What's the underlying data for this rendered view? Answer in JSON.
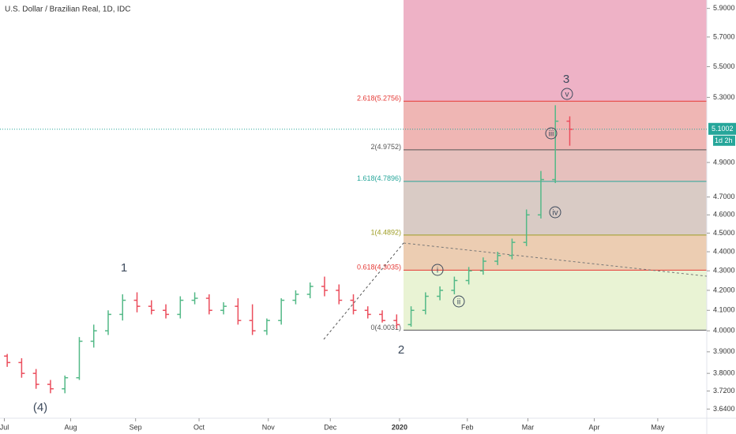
{
  "chart_data": {
    "type": "candlestick",
    "title": "U.S. Dollar / Brazilian Real, 1D, IDC",
    "log_scale": true,
    "ylim": [
      3.6,
      5.96
    ],
    "xlim": [
      -0.5,
      48.5
    ],
    "yticks": [
      {
        "value": 3.64,
        "label": "3.6400"
      },
      {
        "value": 3.72,
        "label": "3.7200"
      },
      {
        "value": 3.8,
        "label": "3.8000"
      },
      {
        "value": 3.9,
        "label": "3.9000"
      },
      {
        "value": 4.0,
        "label": "4.0000"
      },
      {
        "value": 4.1,
        "label": "4.1000"
      },
      {
        "value": 4.2,
        "label": "4.2000"
      },
      {
        "value": 4.3,
        "label": "4.3000"
      },
      {
        "value": 4.4,
        "label": "4.4000"
      },
      {
        "value": 4.5,
        "label": "4.5000"
      },
      {
        "value": 4.6,
        "label": "4.6000"
      },
      {
        "value": 4.7,
        "label": "4.7000"
      },
      {
        "value": 4.9,
        "label": "4.9000"
      },
      {
        "value": 5.3,
        "label": "5.3000"
      },
      {
        "value": 5.5,
        "label": "5.5000"
      },
      {
        "value": 5.7,
        "label": "5.7000"
      },
      {
        "value": 5.9,
        "label": "5.9000"
      }
    ],
    "xticks": [
      {
        "value": -0.2,
        "label": "Jul"
      },
      {
        "value": 4.4,
        "label": "Aug"
      },
      {
        "value": 8.9,
        "label": "Sep"
      },
      {
        "value": 13.3,
        "label": "Oct"
      },
      {
        "value": 18.1,
        "label": "Nov"
      },
      {
        "value": 22.4,
        "label": "Dec"
      },
      {
        "value": 27.2,
        "label": "2020"
      },
      {
        "value": 31.9,
        "label": "Feb"
      },
      {
        "value": 36.1,
        "label": "Mar"
      },
      {
        "value": 40.7,
        "label": "Apr"
      },
      {
        "value": 45.1,
        "label": "May"
      }
    ],
    "up_color": "#53b987",
    "down_color": "#eb4d5c",
    "open": [
      3.88,
      3.85,
      3.8,
      3.75,
      3.73,
      3.78,
      3.95,
      4.0,
      4.08,
      4.15,
      4.12,
      4.1,
      4.08,
      4.15,
      4.16,
      4.1,
      4.12,
      4.05,
      4.0,
      4.05,
      4.15,
      4.18,
      4.22,
      4.2,
      4.15,
      4.1,
      4.08,
      4.05,
      4.03,
      4.1,
      4.17,
      4.2,
      4.25,
      4.3,
      4.35,
      4.38,
      4.45,
      4.6,
      4.8,
      5.15
    ],
    "high": [
      3.89,
      3.87,
      3.82,
      3.77,
      3.79,
      3.97,
      4.03,
      4.1,
      4.18,
      4.19,
      4.15,
      4.13,
      4.17,
      4.19,
      4.18,
      4.14,
      4.16,
      4.13,
      4.06,
      4.16,
      4.2,
      4.24,
      4.27,
      4.23,
      4.18,
      4.12,
      4.1,
      4.08,
      4.12,
      4.19,
      4.22,
      4.27,
      4.32,
      4.37,
      4.4,
      4.47,
      4.63,
      4.85,
      5.25,
      5.18
    ],
    "low": [
      3.83,
      3.78,
      3.73,
      3.71,
      3.71,
      3.77,
      3.92,
      3.98,
      4.05,
      4.09,
      4.08,
      4.06,
      4.06,
      4.13,
      4.08,
      4.08,
      4.03,
      3.98,
      3.98,
      4.03,
      4.13,
      4.16,
      4.17,
      4.13,
      4.08,
      4.06,
      4.04,
      4.01,
      4.02,
      4.08,
      4.15,
      4.18,
      4.23,
      4.28,
      4.33,
      4.36,
      4.43,
      4.58,
      4.78,
      5.0
    ],
    "close": [
      3.85,
      3.8,
      3.75,
      3.73,
      3.78,
      3.95,
      4.0,
      4.08,
      4.15,
      4.12,
      4.1,
      4.08,
      4.15,
      4.16,
      4.1,
      4.12,
      4.05,
      4.0,
      4.05,
      4.15,
      4.18,
      4.22,
      4.2,
      4.15,
      4.1,
      4.08,
      4.05,
      4.03,
      4.1,
      4.17,
      4.2,
      4.25,
      4.3,
      4.35,
      4.38,
      4.45,
      4.6,
      4.8,
      5.15,
      5.1
    ],
    "fib_levels": [
      {
        "label": "2.618(5.2756)",
        "value": 5.2756,
        "color": "#e53935"
      },
      {
        "label": "2(4.9752)",
        "value": 4.9752,
        "color": "#555555"
      },
      {
        "label": "1.618(4.7896)",
        "value": 4.7896,
        "color": "#26a69a"
      },
      {
        "label": "1(4.4892)",
        "value": 4.4892,
        "color": "#9e9d24"
      },
      {
        "label": "0.618(4.3035)",
        "value": 4.3035,
        "color": "#e53935"
      },
      {
        "label": "0(4.0031)",
        "value": 4.0031,
        "color": "#555555"
      }
    ],
    "zone_colors": [
      "#eeb2c6",
      "#efb6b4",
      "#e6c0bd",
      "#d9cbc5",
      "#eccdb2",
      "#e9f3d4"
    ],
    "last_price": {
      "value": 5.1002,
      "label": "5.1002",
      "countdown": "1d 2h",
      "color": "#26a69a"
    },
    "wave_labels": [
      "1",
      "2",
      "3",
      "(4)"
    ],
    "sub_wave_labels": [
      "i",
      "ii",
      "iii",
      "iv",
      "v"
    ]
  }
}
